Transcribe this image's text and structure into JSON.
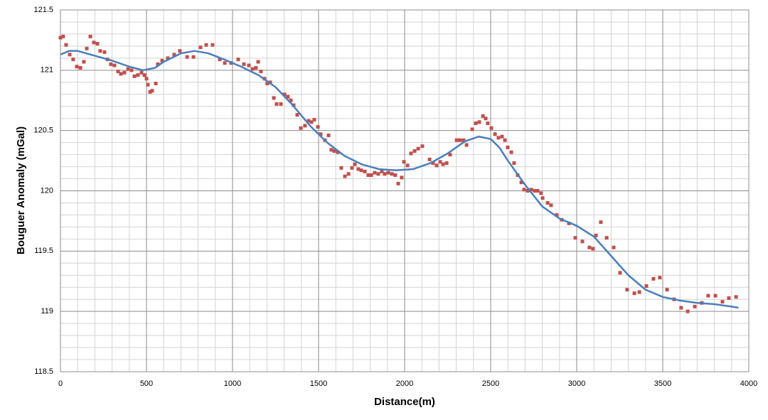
{
  "chart_data": {
    "type": "scatter",
    "xlabel": "Distance(m)",
    "ylabel": "Bouguer Anomaly (mGal)",
    "xlim": [
      0,
      4000
    ],
    "xticks": [
      0,
      500,
      1000,
      1500,
      2000,
      2500,
      3000,
      3500,
      4000
    ],
    "ylim": [
      118.5,
      121.5
    ],
    "yticks": [
      118.5,
      119,
      119.5,
      120,
      120.5,
      121,
      121.5
    ],
    "grid": true,
    "series": [
      {
        "type": "scatter",
        "color": "#c0504d",
        "x": [
          0,
          16,
          33,
          54,
          74,
          95,
          116,
          136,
          153,
          174,
          194,
          215,
          231,
          256,
          273,
          293,
          314,
          335,
          351,
          372,
          393,
          413,
          430,
          450,
          471,
          488,
          500,
          508,
          521,
          533,
          554,
          566,
          591,
          624,
          661,
          694,
          736,
          773,
          814,
          847,
          884,
          926,
          955,
          992,
          1033,
          1066,
          1095,
          1116,
          1136,
          1149,
          1165,
          1186,
          1202,
          1219,
          1240,
          1256,
          1281,
          1302,
          1322,
          1339,
          1355,
          1376,
          1397,
          1421,
          1442,
          1459,
          1475,
          1496,
          1512,
          1537,
          1558,
          1574,
          1591,
          1612,
          1632,
          1653,
          1674,
          1694,
          1711,
          1731,
          1748,
          1769,
          1789,
          1806,
          1826,
          1847,
          1868,
          1884,
          1905,
          1926,
          1946,
          1963,
          1983,
          1996,
          2017,
          2037,
          2058,
          2079,
          2103,
          2145,
          2165,
          2186,
          2207,
          2223,
          2244,
          2264,
          2302,
          2322,
          2343,
          2360,
          2393,
          2413,
          2434,
          2455,
          2471,
          2483,
          2504,
          2525,
          2545,
          2566,
          2583,
          2599,
          2620,
          2636,
          2657,
          2678,
          2694,
          2715,
          2736,
          2756,
          2773,
          2793,
          2802,
          2831,
          2851,
          2884,
          2913,
          2955,
          2992,
          3033,
          3074,
          3095,
          3112,
          3140,
          3174,
          3215,
          3252,
          3293,
          3335,
          3364,
          3405,
          3446,
          3483,
          3525,
          3566,
          3607,
          3645,
          3686,
          3727,
          3764,
          3806,
          3847,
          3884,
          3926
        ],
        "values": [
          121.27,
          121.28,
          121.21,
          121.13,
          121.09,
          121.03,
          121.02,
          121.07,
          121.18,
          121.28,
          121.23,
          121.22,
          121.16,
          121.15,
          121.09,
          121.05,
          121.04,
          120.99,
          120.97,
          120.98,
          121.01,
          121.0,
          120.95,
          120.96,
          120.98,
          120.96,
          120.93,
          120.88,
          120.82,
          120.83,
          120.89,
          121.05,
          121.08,
          121.1,
          121.13,
          121.16,
          121.11,
          121.11,
          121.19,
          121.21,
          121.21,
          121.09,
          121.06,
          121.06,
          121.09,
          121.05,
          121.04,
          121.01,
          121.02,
          121.07,
          120.99,
          120.93,
          120.89,
          120.9,
          120.77,
          120.72,
          120.72,
          120.8,
          120.78,
          120.75,
          120.71,
          120.63,
          120.52,
          120.54,
          120.58,
          120.57,
          120.59,
          120.53,
          120.47,
          120.42,
          120.46,
          120.34,
          120.33,
          120.32,
          120.19,
          120.12,
          120.14,
          120.19,
          120.22,
          120.18,
          120.17,
          120.16,
          120.13,
          120.13,
          120.15,
          120.14,
          120.16,
          120.14,
          120.15,
          120.14,
          120.13,
          120.06,
          120.11,
          120.24,
          120.21,
          120.31,
          120.33,
          120.35,
          120.37,
          120.26,
          120.23,
          120.21,
          120.24,
          120.22,
          120.23,
          120.3,
          120.42,
          120.42,
          120.42,
          120.38,
          120.51,
          120.56,
          120.57,
          120.62,
          120.6,
          120.56,
          120.52,
          120.47,
          120.44,
          120.45,
          120.42,
          120.36,
          120.32,
          120.23,
          120.13,
          120.07,
          120.01,
          120.0,
          120.01,
          120.0,
          120.0,
          119.98,
          119.94,
          119.9,
          119.88,
          119.8,
          119.76,
          119.73,
          119.61,
          119.58,
          119.53,
          119.52,
          119.63,
          119.74,
          119.61,
          119.53,
          119.32,
          119.18,
          119.15,
          119.16,
          119.21,
          119.27,
          119.28,
          119.18,
          119.1,
          119.03,
          119.0,
          119.04,
          119.07,
          119.13,
          119.13,
          119.08,
          119.11,
          119.12
        ]
      },
      {
        "type": "line",
        "color": "#4a7ebb",
        "x": [
          0,
          50,
          100,
          200,
          300,
          400,
          480,
          550,
          600,
          700,
          780,
          860,
          950,
          1050,
          1150,
          1250,
          1350,
          1450,
          1550,
          1650,
          1750,
          1850,
          1950,
          2050,
          2150,
          2250,
          2350,
          2430,
          2500,
          2550,
          2600,
          2700,
          2800,
          2900,
          3000,
          3100,
          3200,
          3300,
          3400,
          3500,
          3600,
          3700,
          3800,
          3900,
          3940
        ],
        "values": [
          121.13,
          121.16,
          121.16,
          121.12,
          121.08,
          121.03,
          121.0,
          121.02,
          121.07,
          121.14,
          121.16,
          121.14,
          121.09,
          121.03,
          120.96,
          120.86,
          120.71,
          120.54,
          120.4,
          120.29,
          120.22,
          120.18,
          120.17,
          120.18,
          120.23,
          120.31,
          120.41,
          120.45,
          120.43,
          120.36,
          120.25,
          120.05,
          119.87,
          119.77,
          119.71,
          119.62,
          119.46,
          119.3,
          119.18,
          119.12,
          119.09,
          119.07,
          119.06,
          119.04,
          119.03
        ]
      }
    ]
  }
}
